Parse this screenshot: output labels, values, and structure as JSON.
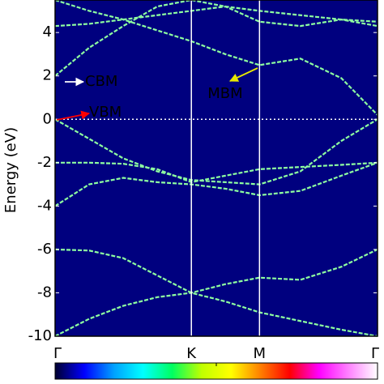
{
  "chart_data": {
    "type": "line",
    "ylabel": "Energy (eV)",
    "xlim": [
      0,
      2.366
    ],
    "xticks": [
      {
        "value": 0,
        "label": "Γ"
      },
      {
        "value": 1,
        "label": "K"
      },
      {
        "value": 1.5,
        "label": "M"
      },
      {
        "value": 2.366,
        "label": "Γ"
      }
    ],
    "ylim": [
      -10,
      5.5
    ],
    "yticks": [
      -10,
      -8,
      -6,
      -4,
      -2,
      0,
      2,
      4
    ],
    "background": "#00007f",
    "fermi_level": 0,
    "x": [
      0,
      0.25,
      0.5,
      0.75,
      1.0,
      1.25,
      1.5,
      1.8,
      2.1,
      2.366
    ],
    "series": [
      {
        "color": "#8effa0",
        "values": [
          -6,
          -6.05,
          -6.4,
          -7.2,
          -8,
          -8.4,
          -8.9,
          -9.3,
          -9.7,
          -10
        ]
      },
      {
        "color": "#8effa0",
        "values": [
          -10,
          -9.2,
          -8.6,
          -8.2,
          -8,
          -7.6,
          -7.3,
          -7.4,
          -6.8,
          -6
        ]
      },
      {
        "color": "#8effa0",
        "values": [
          -2,
          -2,
          -2.05,
          -2.3,
          -2.9,
          -2.6,
          -2.3,
          -2.2,
          -2.1,
          -2
        ]
      },
      {
        "color": "#8effa0",
        "values": [
          -4,
          -3,
          -2.7,
          -2.9,
          -3,
          -3.2,
          -3.5,
          -3.3,
          -2.6,
          -2
        ]
      },
      {
        "color": "#8effa0",
        "values": [
          0,
          -0.9,
          -1.8,
          -2.4,
          -2.8,
          -2.9,
          -3,
          -2.4,
          -1,
          0
        ]
      },
      {
        "color": "#8effa0",
        "values": [
          2,
          3.3,
          4.3,
          5.2,
          5.5,
          5.2,
          5,
          4.8,
          4.6,
          4.5
        ]
      },
      {
        "color": "#8effa0",
        "values": [
          5.5,
          5,
          4.6,
          4.1,
          3.6,
          3,
          2.5,
          2.8,
          1.9,
          0.2
        ]
      },
      {
        "color": "#8effa0",
        "values": [
          4.3,
          4.4,
          4.6,
          4.8,
          5,
          5.2,
          4.5,
          4.3,
          4.6,
          4.3
        ]
      }
    ],
    "annotations": [
      {
        "text": "CBM",
        "color": "#ffffff"
      },
      {
        "text": "VBM",
        "color": "#ff0000"
      },
      {
        "text": "MBM",
        "color": "#e8e800"
      }
    ],
    "colorbar": [
      "#000030",
      "#0000ff",
      "#00a0ff",
      "#00ffff",
      "#00ff60",
      "#c0ff00",
      "#ffff00",
      "#ff8000",
      "#ff0000",
      "#ff00ff",
      "#ff80ff",
      "#ffffff"
    ]
  }
}
